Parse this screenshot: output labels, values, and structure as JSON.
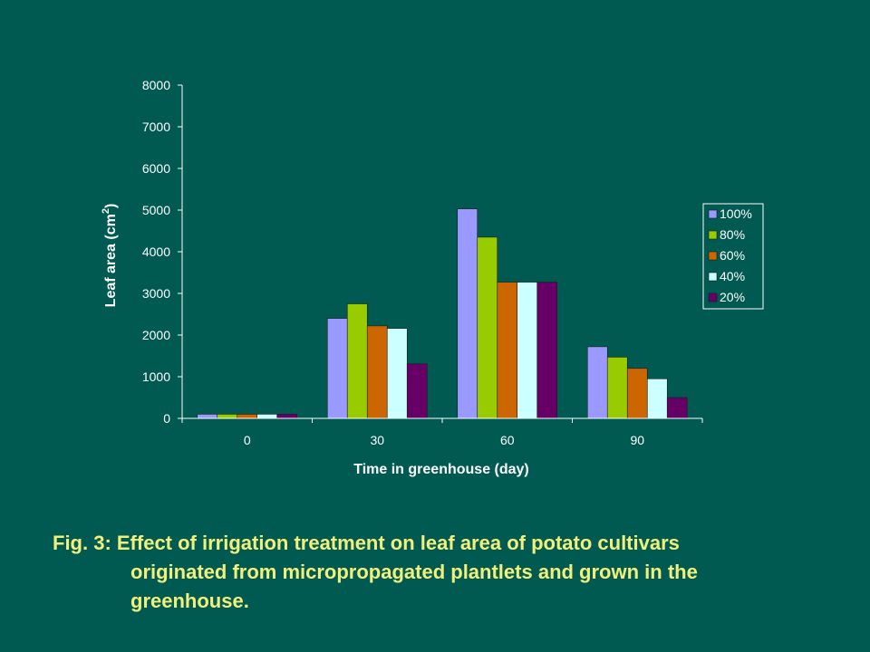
{
  "chart_data": {
    "type": "bar",
    "categories": [
      "0",
      "30",
      "60",
      "90"
    ],
    "series": [
      {
        "name": "100%",
        "values": [
          100,
          2400,
          5030,
          1720
        ],
        "color": "#9999FF"
      },
      {
        "name": "80%",
        "values": [
          100,
          2750,
          4350,
          1470
        ],
        "color": "#99CC00"
      },
      {
        "name": "60%",
        "values": [
          100,
          2220,
          3270,
          1200
        ],
        "color": "#CC6600"
      },
      {
        "name": "40%",
        "values": [
          100,
          2160,
          3270,
          950
        ],
        "color": "#CCFFFF"
      },
      {
        "name": "20%",
        "values": [
          100,
          1310,
          3270,
          500
        ],
        "color": "#660066"
      }
    ],
    "xlabel": "Time in greenhouse (day)",
    "ylabel": "Leaf area (cm",
    "ylabel_sup": "2",
    "ylabel_end": ")",
    "ylim": [
      0,
      8000
    ],
    "yticks": [
      "0",
      "1000",
      "2000",
      "3000",
      "4000",
      "5000",
      "6000",
      "7000",
      "8000"
    ],
    "grid": false,
    "legend_position": "right"
  },
  "caption": {
    "line1": "Fig. 3: Effect of irrigation treatment on leaf area of potato cultivars",
    "line2": "originated from micropropagated plantlets and grown in the",
    "line3": "greenhouse."
  },
  "colors": {
    "background": "#005A52",
    "axis": "#FFFFFF",
    "caption": "#F2F07A"
  }
}
